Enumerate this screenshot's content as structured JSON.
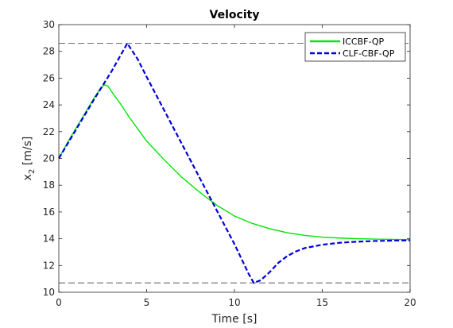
{
  "chart_data": {
    "type": "line",
    "title": "Velocity",
    "xlabel": "Time [s]",
    "ylabel_main": "x",
    "ylabel_sub": "2",
    "ylabel_unit": " [m/s]",
    "xlim": [
      0,
      20
    ],
    "ylim": [
      10,
      30
    ],
    "xticks": [
      0,
      5,
      10,
      15,
      20
    ],
    "yticks": [
      10,
      12,
      14,
      16,
      18,
      20,
      22,
      24,
      26,
      28,
      30
    ],
    "grid": false,
    "legend_position": "top-right",
    "reference_lines": [
      {
        "y": 28.6,
        "color": "#404040",
        "style": "dashed"
      },
      {
        "y": 10.7,
        "color": "#404040",
        "style": "dashed"
      }
    ],
    "series": [
      {
        "name": "ICCBF-QP",
        "color": "#00e600",
        "style": "solid",
        "x": [
          0,
          0.5,
          1,
          1.5,
          2,
          2.4,
          2.6,
          2.8,
          3,
          3.5,
          4,
          4.5,
          5,
          6,
          7,
          8,
          9,
          10,
          11,
          12,
          13,
          14,
          15,
          16,
          17,
          18,
          19,
          20
        ],
        "y": [
          20.0,
          21.2,
          22.3,
          23.4,
          24.5,
          25.3,
          25.5,
          25.4,
          25.0,
          24.1,
          23.1,
          22.2,
          21.3,
          19.9,
          18.6,
          17.5,
          16.5,
          15.7,
          15.15,
          14.75,
          14.45,
          14.25,
          14.12,
          14.05,
          14.0,
          13.97,
          13.95,
          13.93
        ]
      },
      {
        "name": "CLF-CBF-QP",
        "color": "#0000d9",
        "style": "dashed",
        "x": [
          0,
          1,
          2,
          3,
          3.9,
          4.5,
          5,
          6,
          7,
          8,
          9,
          10,
          10.8,
          11.1,
          11.5,
          12,
          12.5,
          13,
          13.5,
          14,
          15,
          16,
          17,
          18,
          19,
          20
        ],
        "y": [
          20.0,
          22.2,
          24.4,
          26.5,
          28.6,
          27.4,
          26.1,
          23.6,
          21.1,
          18.6,
          16.1,
          13.6,
          11.4,
          10.7,
          10.9,
          11.5,
          12.2,
          12.7,
          13.05,
          13.3,
          13.55,
          13.7,
          13.78,
          13.83,
          13.86,
          13.88
        ]
      }
    ]
  }
}
